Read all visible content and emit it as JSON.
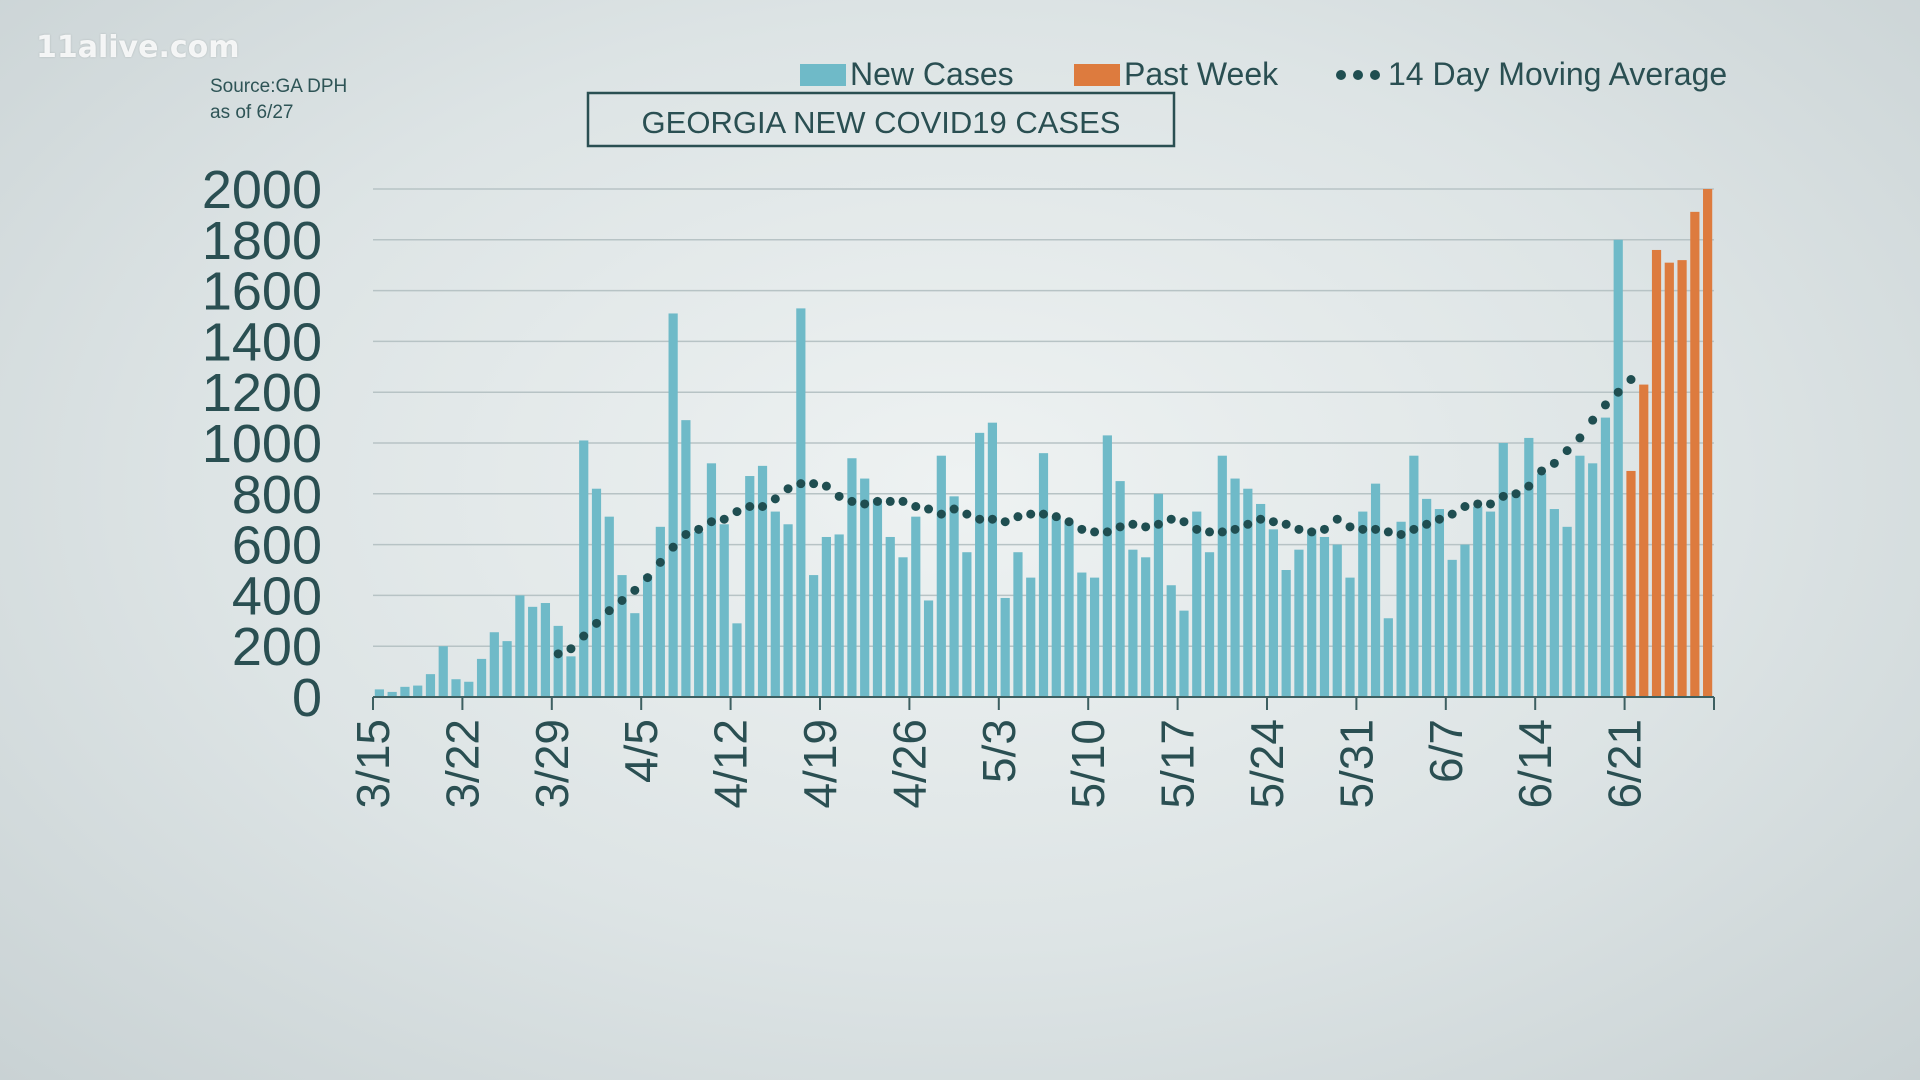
{
  "watermark": "11alive.com",
  "source_line1": "Source:GA DPH",
  "source_line2": "as of 6/27",
  "colors": {
    "new_cases": "#6fbac8",
    "past_week": "#dd7b3e",
    "moving_avg": "#1f4e51",
    "axis_text": "#2a4f52",
    "gridline": "#b7c3c5"
  },
  "chart_data": {
    "type": "bar",
    "title": "GEORGIA NEW COVID19 CASES",
    "xlabel": "",
    "ylabel": "",
    "ylim": [
      0,
      2000
    ],
    "yticks": [
      0,
      200,
      400,
      600,
      800,
      1000,
      1200,
      1400,
      1600,
      1800,
      2000
    ],
    "legend": [
      "New Cases",
      "Past Week",
      "14 Day Moving Average"
    ],
    "legend_placement": "top-right",
    "grid": true,
    "x_ticks": [
      "3/15",
      "3/22",
      "3/29",
      "4/5",
      "4/12",
      "4/19",
      "4/26",
      "5/3",
      "5/10",
      "5/17",
      "5/24",
      "5/31",
      "6/7",
      "6/14",
      "6/21"
    ],
    "dates_start": "3/15",
    "series": [
      {
        "name": "New Cases",
        "values": [
          30,
          20,
          40,
          45,
          90,
          200,
          70,
          60,
          150,
          255,
          220,
          400,
          355,
          370,
          280,
          160,
          1010,
          820,
          710,
          480,
          330,
          480,
          670,
          1510,
          1090,
          650,
          920,
          680,
          290,
          870,
          910,
          730,
          680,
          1530,
          480,
          630,
          640,
          940,
          860,
          780,
          630,
          550,
          710,
          380,
          950,
          790,
          570,
          1040,
          1080,
          390,
          570,
          470,
          960,
          710,
          690,
          490,
          470,
          1030,
          850,
          580,
          550,
          800,
          440,
          340,
          730,
          570,
          950,
          860,
          820,
          760,
          660,
          500,
          580,
          660,
          630,
          600,
          470,
          730,
          840,
          310,
          690,
          950,
          780,
          740,
          540,
          600,
          750,
          730,
          1000,
          810,
          1020,
          880,
          740,
          670,
          950,
          920,
          1100,
          1800
        ]
      },
      {
        "name": "Past Week",
        "values": [
          890,
          1230,
          1760,
          1710,
          1720,
          1910,
          2000
        ]
      },
      {
        "name": "14 Day Moving Average",
        "start_index": 14,
        "values": [
          170,
          190,
          240,
          290,
          340,
          380,
          420,
          470,
          530,
          590,
          640,
          660,
          690,
          700,
          730,
          750,
          750,
          780,
          820,
          840,
          840,
          830,
          790,
          770,
          760,
          770,
          770,
          770,
          750,
          740,
          720,
          740,
          720,
          700,
          700,
          690,
          710,
          720,
          720,
          710,
          690,
          660,
          650,
          650,
          670,
          680,
          670,
          680,
          700,
          690,
          660,
          650,
          650,
          660,
          680,
          700,
          690,
          680,
          660,
          650,
          660,
          700,
          670,
          660,
          660,
          650,
          640,
          660,
          680,
          700,
          720,
          750,
          760,
          760,
          790,
          800,
          830,
          890,
          920,
          970,
          1020,
          1090,
          1150,
          1200,
          1250
        ]
      }
    ]
  }
}
